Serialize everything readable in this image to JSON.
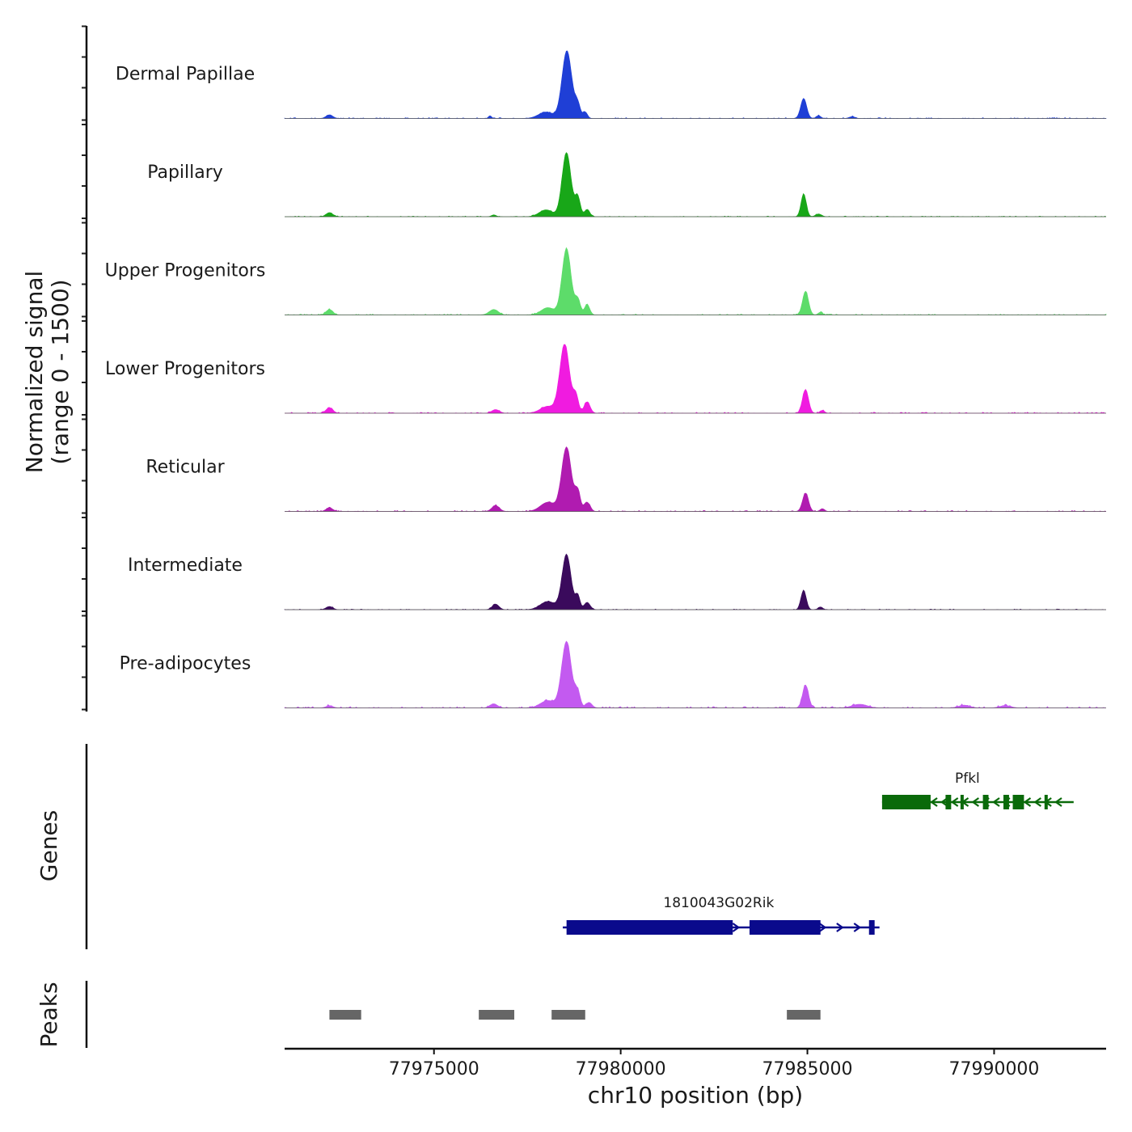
{
  "chart_data": {
    "type": "area",
    "title": "",
    "ylabel_line1": "Normalized signal",
    "ylabel_line2": "(range 0 - 1500)",
    "xlabel": "chr10 position (bp)",
    "signal_range": [
      0,
      1500
    ],
    "xlim": [
      77971000,
      77993000
    ],
    "xticks": [
      77975000,
      77980000,
      77985000,
      77990000
    ],
    "xtick_labels": [
      "77975000",
      "77980000",
      "77985000",
      "77990000"
    ],
    "genes_label": "Genes",
    "peaks_label": "Peaks",
    "tracks": [
      {
        "name": "Dermal Papillae",
        "color": "#1f3fd6",
        "scale": 1.0,
        "noise": 0.012,
        "peaks": [
          [
            77972200,
            80,
            90
          ],
          [
            77976500,
            60,
            40
          ],
          [
            77978560,
            1480,
            130
          ],
          [
            77978000,
            140,
            200
          ],
          [
            77978850,
            290,
            70
          ],
          [
            77979050,
            140,
            60
          ],
          [
            77984900,
            440,
            80
          ],
          [
            77985300,
            60,
            60
          ],
          [
            77986200,
            40,
            80
          ]
        ]
      },
      {
        "name": "Papillary",
        "color": "#18a718",
        "scale": 1.0,
        "noise": 0.01,
        "peaks": [
          [
            77972200,
            90,
            90
          ],
          [
            77976600,
            40,
            60
          ],
          [
            77978550,
            1400,
            120
          ],
          [
            77978000,
            150,
            180
          ],
          [
            77978850,
            420,
            70
          ],
          [
            77979100,
            160,
            70
          ],
          [
            77984900,
            500,
            70
          ],
          [
            77985300,
            60,
            80
          ]
        ]
      },
      {
        "name": "Upper Progenitors",
        "color": "#5ddc6a",
        "scale": 1.0,
        "noise": 0.012,
        "peaks": [
          [
            77972200,
            120,
            90
          ],
          [
            77976600,
            120,
            120
          ],
          [
            77978550,
            1450,
            120
          ],
          [
            77978050,
            160,
            180
          ],
          [
            77978850,
            330,
            70
          ],
          [
            77979100,
            230,
            70
          ],
          [
            77984950,
            520,
            80
          ],
          [
            77985350,
            60,
            60
          ]
        ]
      },
      {
        "name": "Lower Progenitors",
        "color": "#f01be0",
        "scale": 1.0,
        "noise": 0.014,
        "peaks": [
          [
            77972200,
            120,
            90
          ],
          [
            77976650,
            80,
            100
          ],
          [
            77978500,
            1500,
            130
          ],
          [
            77978050,
            150,
            200
          ],
          [
            77978800,
            370,
            70
          ],
          [
            77979100,
            250,
            80
          ],
          [
            77984950,
            520,
            80
          ],
          [
            77985400,
            60,
            60
          ]
        ]
      },
      {
        "name": "Reticular",
        "color": "#b01bb0",
        "scale": 1.0,
        "noise": 0.014,
        "peaks": [
          [
            77972200,
            80,
            90
          ],
          [
            77976650,
            130,
            100
          ],
          [
            77978550,
            1400,
            130
          ],
          [
            77978050,
            200,
            200
          ],
          [
            77978850,
            420,
            70
          ],
          [
            77979100,
            200,
            80
          ],
          [
            77984950,
            400,
            80
          ],
          [
            77985400,
            60,
            60
          ]
        ]
      },
      {
        "name": "Intermediate",
        "color": "#3a0a5c",
        "scale": 1.0,
        "noise": 0.01,
        "peaks": [
          [
            77972200,
            70,
            90
          ],
          [
            77976650,
            120,
            90
          ],
          [
            77978550,
            1200,
            120
          ],
          [
            77978050,
            180,
            200
          ],
          [
            77978850,
            300,
            60
          ],
          [
            77979100,
            160,
            80
          ],
          [
            77984900,
            420,
            70
          ],
          [
            77985350,
            60,
            60
          ]
        ]
      },
      {
        "name": "Pre-adipocytes",
        "color": "#c35af0",
        "scale": 1.0,
        "noise": 0.02,
        "peaks": [
          [
            77972200,
            50,
            90
          ],
          [
            77976600,
            90,
            100
          ],
          [
            77978550,
            1450,
            130
          ],
          [
            77978050,
            160,
            200
          ],
          [
            77978850,
            330,
            70
          ],
          [
            77979150,
            120,
            80
          ],
          [
            77984950,
            500,
            80
          ],
          [
            77986400,
            80,
            200
          ],
          [
            77989200,
            60,
            150
          ],
          [
            77990300,
            50,
            150
          ]
        ]
      }
    ],
    "genes": [
      {
        "name": "Pfkl",
        "color": "#0a6a0a",
        "start": 77987000,
        "end": 77992000,
        "strand": "-",
        "exons": [
          [
            77987000,
            77988300
          ],
          [
            77988700,
            77988850
          ],
          [
            77989100,
            77989180
          ],
          [
            77989700,
            77989850
          ],
          [
            77990250,
            77990400
          ],
          [
            77990500,
            77990800
          ],
          [
            77991350,
            77991420
          ]
        ]
      },
      {
        "name": "1810043G02Rik",
        "color": "#0a0a8c",
        "start": 77978450,
        "end": 77986800,
        "strand": "+",
        "exons": [
          [
            77978550,
            77983000
          ],
          [
            77983450,
            77985350
          ],
          [
            77986650,
            77986800
          ]
        ]
      }
    ],
    "peaks_regions": [
      [
        77972200,
        77973050
      ],
      [
        77976200,
        77977150
      ],
      [
        77978150,
        77979050
      ],
      [
        77984450,
        77985350
      ]
    ]
  }
}
